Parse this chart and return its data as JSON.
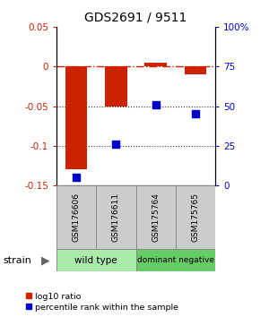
{
  "title": "GDS2691 / 9511",
  "samples": [
    "GSM176606",
    "GSM176611",
    "GSM175764",
    "GSM175765"
  ],
  "log10_ratio": [
    -0.13,
    -0.05,
    0.005,
    -0.01
  ],
  "percentile_rank": [
    5,
    26,
    51,
    45
  ],
  "ylim_left": [
    -0.15,
    0.05
  ],
  "ylim_right": [
    0,
    100
  ],
  "bar_color": "#cc2200",
  "square_color": "#0000cc",
  "groups": [
    {
      "label": "wild type",
      "samples": [
        0,
        1
      ],
      "color": "#aaeaaa"
    },
    {
      "label": "dominant negative",
      "samples": [
        2,
        3
      ],
      "color": "#66cc66"
    }
  ],
  "right_ticks": [
    0,
    25,
    50,
    75,
    100
  ],
  "right_tick_labels": [
    "0",
    "25",
    "50",
    "75",
    "100%"
  ],
  "left_ticks": [
    -0.15,
    -0.1,
    -0.05,
    0.0,
    0.05
  ],
  "left_tick_labels": [
    "-0.15",
    "-0.1",
    "-0.05",
    "0",
    "0.05"
  ],
  "legend_red_label": "log10 ratio",
  "legend_blue_label": "percentile rank within the sample",
  "strain_label": "strain",
  "bar_width": 0.55,
  "hline_zero_color": "#cc2200",
  "dotted_line_color": "#333333",
  "background_color": "#ffffff"
}
